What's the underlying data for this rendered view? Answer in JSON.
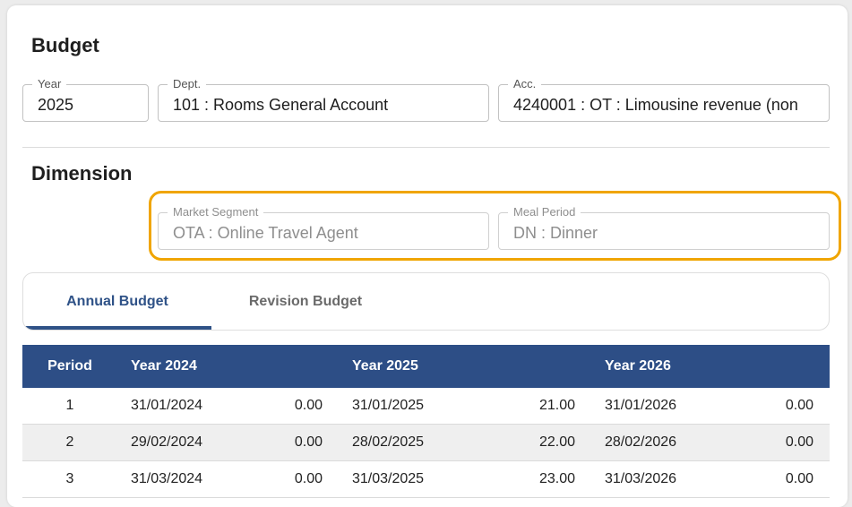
{
  "budget": {
    "title": "Budget",
    "year": {
      "label": "Year",
      "value": "2025"
    },
    "dept": {
      "label": "Dept.",
      "value": "101 : Rooms General Account"
    },
    "acc": {
      "label": "Acc.",
      "value": "4240001 : OT : Limousine revenue (non"
    }
  },
  "dimension": {
    "title": "Dimension",
    "market_segment": {
      "label": "Market Segment",
      "value": "OTA : Online Travel Agent"
    },
    "meal_period": {
      "label": "Meal Period",
      "value": "DN :  Dinner"
    }
  },
  "tabs": [
    {
      "label": "Annual Budget",
      "active": true
    },
    {
      "label": "Revision Budget",
      "active": false
    }
  ],
  "table": {
    "headers": {
      "period": "Period",
      "y1": "Year 2024",
      "y2": "Year 2025",
      "y3": "Year 2026"
    },
    "rows": [
      {
        "period": "1",
        "d1": "31/01/2024",
        "v1": "0.00",
        "d2": "31/01/2025",
        "v2": "21.00",
        "d3": "31/01/2026",
        "v3": "0.00"
      },
      {
        "period": "2",
        "d1": "29/02/2024",
        "v1": "0.00",
        "d2": "28/02/2025",
        "v2": "22.00",
        "d3": "28/02/2026",
        "v3": "0.00"
      },
      {
        "period": "3",
        "d1": "31/03/2024",
        "v1": "0.00",
        "d2": "31/03/2025",
        "v2": "23.00",
        "d3": "31/03/2026",
        "v3": "0.00"
      }
    ]
  },
  "colors": {
    "accent": "#2d4e86",
    "highlight": "#f0a500"
  }
}
